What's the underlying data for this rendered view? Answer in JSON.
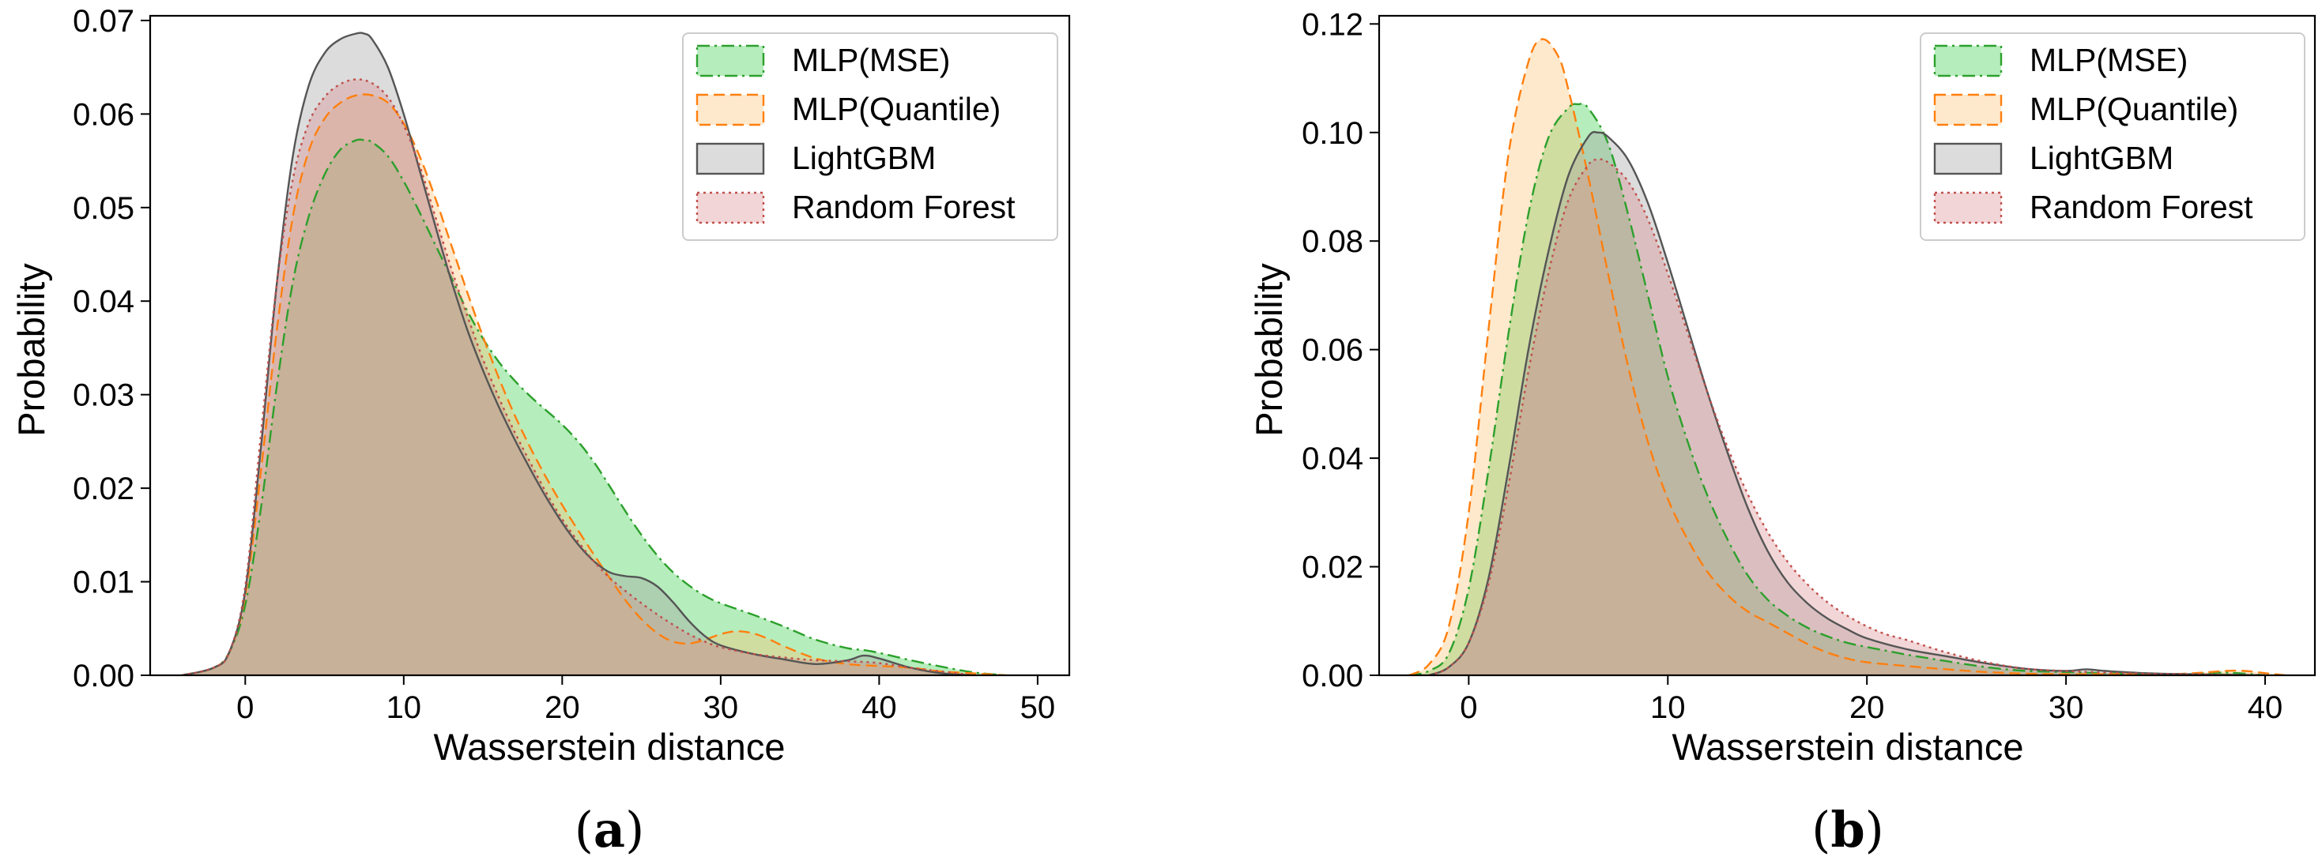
{
  "chart_data": [
    {
      "type": "area",
      "panel": "(a)",
      "panel_letter": "a",
      "xlabel": "Wasserstein distance",
      "ylabel": "Probability",
      "xlim": [
        -6,
        52
      ],
      "ylim": [
        0,
        0.0705
      ],
      "xticks": [
        0,
        10,
        20,
        30,
        40,
        50
      ],
      "xtick_labels": [
        "0",
        "10",
        "20",
        "30",
        "40",
        "50"
      ],
      "yticks": [
        0,
        0.01,
        0.02,
        0.03,
        0.04,
        0.05,
        0.06,
        0.07
      ],
      "ytick_labels": [
        "0.00",
        "0.01",
        "0.02",
        "0.03",
        "0.04",
        "0.05",
        "0.06",
        "0.07"
      ],
      "legend_position": "upper right",
      "series": [
        {
          "name": "MLP(MSE)",
          "line_color": "#2ca02c",
          "fill_color": "#2ecc40",
          "dash": "dashdot",
          "x": [
            -4,
            -2,
            -1,
            0,
            1,
            2,
            3,
            4,
            5,
            6,
            7,
            7.5,
            8,
            9,
            10,
            11,
            12,
            13,
            14,
            15,
            16,
            17,
            18,
            19,
            20,
            21,
            22,
            23,
            24,
            25,
            26,
            27,
            28,
            29,
            30,
            32,
            34,
            36,
            38,
            39,
            40,
            42,
            44,
            46,
            48
          ],
          "values": [
            0,
            0.0008,
            0.0025,
            0.0075,
            0.018,
            0.031,
            0.042,
            0.049,
            0.0535,
            0.0562,
            0.0572,
            0.0572,
            0.057,
            0.0555,
            0.0528,
            0.0495,
            0.046,
            0.0425,
            0.039,
            0.036,
            0.0335,
            0.0315,
            0.0298,
            0.0283,
            0.0268,
            0.025,
            0.0228,
            0.0202,
            0.0175,
            0.015,
            0.0128,
            0.011,
            0.0096,
            0.0085,
            0.0077,
            0.0065,
            0.0052,
            0.0038,
            0.0029,
            0.0027,
            0.0024,
            0.0016,
            0.0009,
            0.0003,
            0
          ]
        },
        {
          "name": "MLP(Quantile)",
          "line_color": "#ff7f0e",
          "fill_color": "#ffbf70",
          "dash": "dashed",
          "x": [
            -4,
            -2,
            -1,
            0,
            1,
            2,
            3,
            4,
            5,
            6,
            7,
            8,
            9,
            10,
            11,
            12,
            13,
            14,
            15,
            16,
            17,
            18,
            19,
            20,
            21,
            22,
            23,
            24,
            25,
            26,
            27,
            28,
            29,
            30,
            31,
            32,
            33,
            34,
            36,
            38,
            40,
            42,
            44,
            46,
            48
          ],
          "values": [
            0,
            0.0008,
            0.0025,
            0.0085,
            0.022,
            0.037,
            0.049,
            0.056,
            0.0595,
            0.0612,
            0.062,
            0.062,
            0.0612,
            0.059,
            0.0555,
            0.051,
            0.046,
            0.041,
            0.0362,
            0.0318,
            0.0278,
            0.0243,
            0.0211,
            0.0182,
            0.0155,
            0.0129,
            0.0104,
            0.008,
            0.006,
            0.0045,
            0.0036,
            0.0034,
            0.0038,
            0.0044,
            0.0047,
            0.0045,
            0.0039,
            0.0031,
            0.0018,
            0.0012,
            0.001,
            0.0008,
            0.0004,
            0.0002,
            0
          ]
        },
        {
          "name": "LightGBM",
          "line_color": "#555555",
          "fill_color": "#9a9a9a",
          "dash": "solid",
          "x": [
            -4,
            -2,
            -1,
            0,
            1,
            2,
            3,
            4,
            5,
            6,
            7,
            7.5,
            8,
            9,
            10,
            11,
            12,
            13,
            14,
            15,
            16,
            17,
            18,
            19,
            20,
            21,
            22,
            23,
            24,
            25,
            26,
            27,
            28,
            29,
            30,
            32,
            34,
            36,
            38,
            39,
            40,
            42,
            44,
            46
          ],
          "values": [
            0,
            0.0008,
            0.0025,
            0.009,
            0.0245,
            0.042,
            0.0555,
            0.063,
            0.0665,
            0.068,
            0.0686,
            0.0686,
            0.068,
            0.065,
            0.06,
            0.054,
            0.048,
            0.0422,
            0.037,
            0.0326,
            0.0287,
            0.0252,
            0.022,
            0.019,
            0.0163,
            0.014,
            0.0122,
            0.011,
            0.0106,
            0.0104,
            0.0095,
            0.0078,
            0.0058,
            0.0042,
            0.0032,
            0.0023,
            0.0017,
            0.0012,
            0.0016,
            0.0021,
            0.0018,
            0.0008,
            0.0002,
            0
          ]
        },
        {
          "name": "Random Forest",
          "line_color": "#c0504d",
          "fill_color": "#d9898b",
          "dash": "dotted",
          "x": [
            -4,
            -2,
            -1,
            0,
            1,
            2,
            3,
            4,
            5,
            6,
            7,
            8,
            9,
            10,
            11,
            12,
            13,
            14,
            15,
            16,
            17,
            18,
            19,
            20,
            21,
            22,
            23,
            24,
            25,
            26,
            27,
            28,
            29,
            30,
            32,
            34,
            36,
            38,
            40,
            42,
            44,
            46
          ],
          "values": [
            0,
            0.0008,
            0.0025,
            0.0095,
            0.026,
            0.042,
            0.053,
            0.059,
            0.0618,
            0.0632,
            0.0637,
            0.0633,
            0.0618,
            0.0588,
            0.0545,
            0.049,
            0.0435,
            0.0385,
            0.0338,
            0.0297,
            0.026,
            0.0227,
            0.0195,
            0.0167,
            0.0143,
            0.0122,
            0.0104,
            0.009,
            0.0077,
            0.0065,
            0.0054,
            0.0044,
            0.0036,
            0.003,
            0.0023,
            0.0019,
            0.0016,
            0.0015,
            0.0013,
            0.0008,
            0.0004,
            0
          ]
        }
      ]
    },
    {
      "type": "area",
      "panel": "(b)",
      "panel_letter": "b",
      "xlabel": "Wasserstein distance",
      "ylabel": "Probability",
      "xlim": [
        -4.5,
        42.5
      ],
      "ylim": [
        0,
        0.1215
      ],
      "xticks": [
        0,
        10,
        20,
        30,
        40
      ],
      "xtick_labels": [
        "0",
        "10",
        "20",
        "30",
        "40"
      ],
      "yticks": [
        0,
        0.02,
        0.04,
        0.06,
        0.08,
        0.1,
        0.12
      ],
      "ytick_labels": [
        "0.00",
        "0.02",
        "0.04",
        "0.06",
        "0.08",
        "0.10",
        "0.12"
      ],
      "legend_position": "upper right",
      "series": [
        {
          "name": "MLP(MSE)",
          "line_color": "#2ca02c",
          "fill_color": "#2ecc40",
          "dash": "dashdot",
          "x": [
            -3,
            -2,
            -1,
            0,
            1,
            2,
            3,
            4,
            5,
            5.5,
            6,
            7,
            8,
            9,
            10,
            11,
            12,
            13,
            14,
            15,
            16,
            17,
            18,
            19,
            20,
            21,
            22,
            23,
            24,
            26,
            28,
            30,
            32,
            34,
            36,
            38,
            40
          ],
          "values": [
            0,
            0.0008,
            0.004,
            0.016,
            0.038,
            0.063,
            0.085,
            0.099,
            0.1045,
            0.1052,
            0.1045,
            0.098,
            0.085,
            0.07,
            0.055,
            0.043,
            0.033,
            0.025,
            0.0185,
            0.014,
            0.011,
            0.0088,
            0.0072,
            0.006,
            0.0052,
            0.0045,
            0.0038,
            0.0032,
            0.0026,
            0.0015,
            0.0008,
            0.0006,
            0.0004,
            0.0002,
            0.0002,
            0.0005,
            0
          ]
        },
        {
          "name": "MLP(Quantile)",
          "line_color": "#ff7f0e",
          "fill_color": "#ffbf70",
          "dash": "dashed",
          "x": [
            -3,
            -2,
            -1,
            0,
            1,
            2,
            3,
            3.7,
            4.5,
            5,
            6,
            7,
            8,
            9,
            10,
            11,
            12,
            13,
            14,
            15,
            16,
            17,
            18,
            19,
            20,
            22,
            24,
            26,
            28,
            30,
            32,
            34,
            36,
            38,
            39,
            40,
            41
          ],
          "values": [
            0,
            0.002,
            0.009,
            0.03,
            0.064,
            0.096,
            0.113,
            0.1172,
            0.114,
            0.108,
            0.092,
            0.074,
            0.057,
            0.043,
            0.0325,
            0.025,
            0.019,
            0.0148,
            0.0118,
            0.0098,
            0.0078,
            0.0058,
            0.0042,
            0.0031,
            0.0024,
            0.0017,
            0.0011,
            0.0006,
            0.0003,
            0.0002,
            0.0002,
            0.0002,
            0.0003,
            0.0008,
            0.0008,
            0.0004,
            0
          ]
        },
        {
          "name": "LightGBM",
          "line_color": "#555555",
          "fill_color": "#9a9a9a",
          "dash": "solid",
          "x": [
            -2,
            -1,
            0,
            1,
            2,
            3,
            4,
            5,
            6,
            6.5,
            7,
            8,
            9,
            10,
            11,
            12,
            13,
            14,
            15,
            16,
            17,
            18,
            19,
            20,
            22,
            24,
            26,
            28,
            30,
            31,
            32,
            34,
            36,
            38,
            40
          ],
          "values": [
            0,
            0.0015,
            0.006,
            0.018,
            0.038,
            0.06,
            0.078,
            0.092,
            0.0992,
            0.1,
            0.0992,
            0.095,
            0.087,
            0.076,
            0.064,
            0.052,
            0.041,
            0.031,
            0.023,
            0.0172,
            0.0133,
            0.0105,
            0.0085,
            0.0068,
            0.0048,
            0.0035,
            0.0022,
            0.0012,
            0.0008,
            0.0011,
            0.0008,
            0.0004,
            0.0002,
            0.0001,
            0
          ]
        },
        {
          "name": "Random Forest",
          "line_color": "#c0504d",
          "fill_color": "#d9898b",
          "dash": "dotted",
          "x": [
            -2,
            -1,
            0,
            1,
            2,
            3,
            4,
            5,
            6,
            6.5,
            7,
            8,
            9,
            10,
            11,
            12,
            13,
            14,
            15,
            16,
            17,
            18,
            19,
            20,
            21,
            22,
            24,
            26,
            28,
            30,
            32,
            34,
            36,
            38,
            40
          ],
          "values": [
            0,
            0.0015,
            0.006,
            0.017,
            0.035,
            0.056,
            0.074,
            0.0875,
            0.094,
            0.095,
            0.0945,
            0.091,
            0.084,
            0.074,
            0.063,
            0.052,
            0.042,
            0.0335,
            0.0265,
            0.021,
            0.0168,
            0.0135,
            0.011,
            0.009,
            0.0075,
            0.0065,
            0.0042,
            0.0024,
            0.0012,
            0.0008,
            0.0005,
            0.0003,
            0.0002,
            0.0001,
            0
          ]
        }
      ]
    }
  ]
}
